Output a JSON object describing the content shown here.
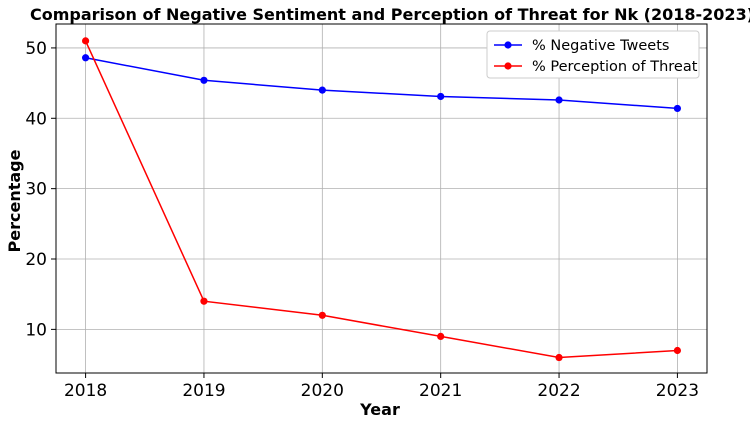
{
  "chart_data": {
    "type": "line",
    "title": "Comparison of Negative Sentiment and Perception of Threat for Nk (2018-2023)",
    "xlabel": "Year",
    "ylabel": "Percentage",
    "x": [
      2018,
      2019,
      2020,
      2021,
      2022,
      2023
    ],
    "x_tick_labels": [
      "2018",
      "2019",
      "2020",
      "2021",
      "2022",
      "2023"
    ],
    "y_ticks": [
      10,
      20,
      30,
      40,
      50
    ],
    "y_tick_labels": [
      "10",
      "20",
      "30",
      "40",
      "50"
    ],
    "xlim": [
      2017.75,
      2023.25
    ],
    "ylim": [
      3.8,
      53.4
    ],
    "grid": true,
    "legend_position": "top-right",
    "series": [
      {
        "name": "% Negative Tweets",
        "color": "#0000ff",
        "values": [
          48.6,
          45.4,
          44.0,
          43.1,
          42.6,
          41.4
        ]
      },
      {
        "name": "% Perception of Threat",
        "color": "#ff0000",
        "values": [
          51.0,
          14.0,
          12.0,
          9.0,
          6.0,
          7.0
        ]
      }
    ]
  }
}
